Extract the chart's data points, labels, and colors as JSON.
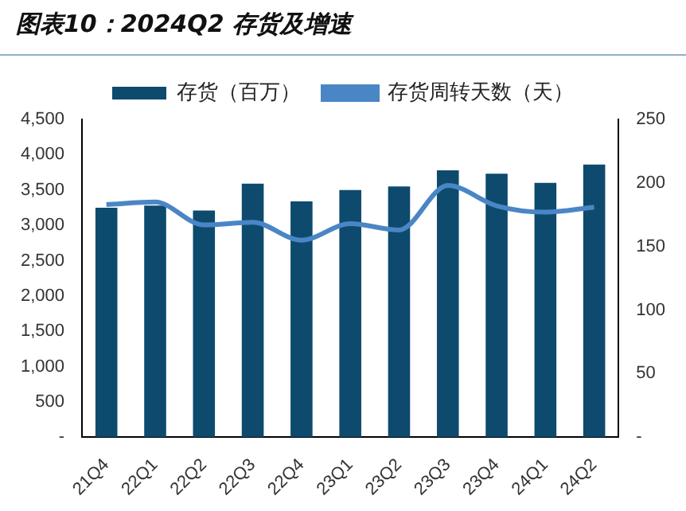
{
  "chart_data": {
    "type": "bar",
    "title": "图表10：2024Q2 存货及增速",
    "categories": [
      "21Q4",
      "22Q1",
      "22Q2",
      "22Q3",
      "22Q4",
      "23Q1",
      "23Q2",
      "23Q3",
      "23Q4",
      "24Q1",
      "24Q2"
    ],
    "series": [
      {
        "name": "存货（百万）",
        "color": "#0d4a6e",
        "values": [
          3250,
          3280,
          3210,
          3590,
          3340,
          3500,
          3550,
          3780,
          3730,
          3600,
          3860
        ]
      },
      {
        "name": "存货周转天数（天）",
        "type": "line",
        "axis": "y2",
        "color": "#4a86c5",
        "values": [
          183,
          185,
          167,
          169,
          155,
          168,
          163,
          198,
          182,
          177,
          181
        ]
      }
    ],
    "ylim": [
      0,
      4500
    ],
    "yticks": [
      {
        "value": 0,
        "label": "-"
      },
      {
        "value": 500,
        "label": "500"
      },
      {
        "value": 1000,
        "label": "1,000"
      },
      {
        "value": 1500,
        "label": "1,500"
      },
      {
        "value": 2000,
        "label": "2,000"
      },
      {
        "value": 2500,
        "label": "2,500"
      },
      {
        "value": 3000,
        "label": "3,000"
      },
      {
        "value": 3500,
        "label": "3,500"
      },
      {
        "value": 4000,
        "label": "4,000"
      },
      {
        "value": 4500,
        "label": "4,500"
      }
    ],
    "y2lim": [
      0,
      250
    ],
    "y2ticks": [
      {
        "value": 0,
        "label": "-"
      },
      50,
      100,
      150,
      200,
      250
    ],
    "grid": false,
    "legend": "top",
    "marker": "none"
  }
}
